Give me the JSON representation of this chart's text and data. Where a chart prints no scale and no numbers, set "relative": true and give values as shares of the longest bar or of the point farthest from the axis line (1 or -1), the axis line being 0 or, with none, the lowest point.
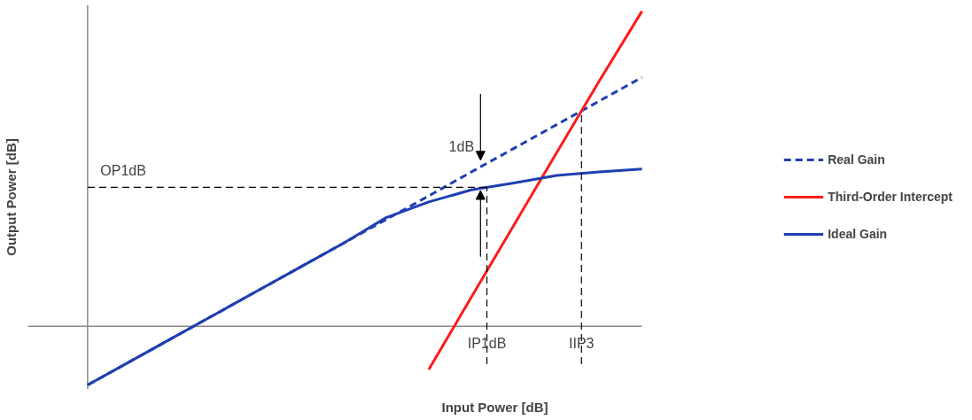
{
  "chart_data": {
    "type": "line",
    "relative": true,
    "xlabel": "Input Power [dB]",
    "ylabel": "Output Power [dB]",
    "categories": [
      null,
      null,
      null,
      null,
      null,
      null,
      null,
      null,
      null,
      null,
      null,
      null,
      null,
      null
    ],
    "series": [
      {
        "name": "Real Gain",
        "color": "#1f3fb0",
        "line_style": "dashed",
        "values": [
          -0.186,
          -0.111,
          -0.036,
          0.039,
          0.114,
          0.189,
          0.264,
          0.339,
          0.414,
          0.49,
          0.565,
          0.64,
          0.715,
          0.79
        ]
      },
      {
        "name": "Third-Order Intercept",
        "color": "#ff1a1a",
        "line_style": "solid",
        "values": [
          null,
          null,
          null,
          null,
          null,
          null,
          null,
          null,
          -0.137,
          0.093,
          0.322,
          0.551,
          0.779,
          1.0
        ]
      },
      {
        "name": "Ideal Gain",
        "color": "#1f3fb0",
        "line_style": "solid",
        "values": [
          -0.186,
          -0.111,
          -0.036,
          0.039,
          0.114,
          0.189,
          0.264,
          0.345,
          0.395,
          0.433,
          0.455,
          0.479,
          0.49,
          0.499
        ]
      }
    ],
    "ref_lines": [
      {
        "axis": "y",
        "value": 0.441,
        "label": "OP1dB",
        "color": "#000000",
        "line_style": "dashed"
      }
    ],
    "annotations": [
      "1dB",
      "IP1dB",
      "IIP3"
    ],
    "legend": "right",
    "grid": false,
    "marker": "none"
  }
}
